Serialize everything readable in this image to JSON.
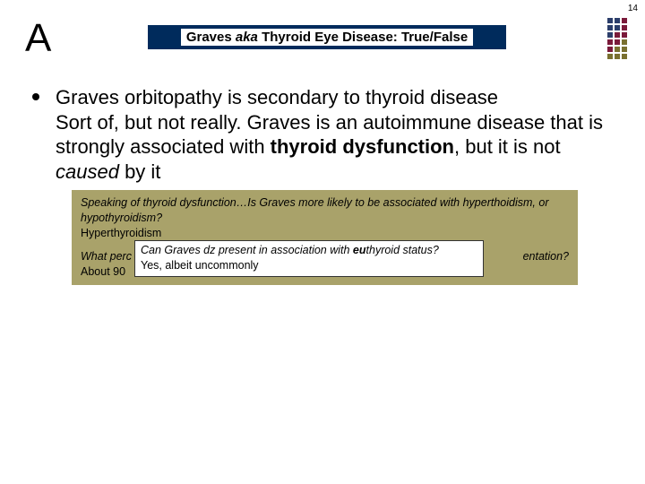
{
  "page_number": "14",
  "big_letter": "A",
  "title": {
    "pre": "Graves ",
    "aka": "aka",
    "post": " Thyroid Eye Disease: True/False"
  },
  "main": {
    "line1": "Graves orbitopathy is secondary to thyroid disease",
    "line2_pre": "Sort of, but not really. Graves is an autoimmune disease that is strongly associated with ",
    "line2_bold": "thyroid dysfunction",
    "line2_mid": ", but it is not ",
    "line2_ital": "caused",
    "line2_post": " by it"
  },
  "box1": {
    "q_pre": "Speaking of thyroid dysfunction…Is Graves more likely to be associated with hyp",
    "q_em1": "er",
    "q_mid": "thoidism, or hyp",
    "q_em2": "o",
    "q_post": "thyroidism?",
    "a": "Hyperthyroidism"
  },
  "box2": {
    "q_left": "What perc",
    "q_right": "entation?",
    "a": "About 90"
  },
  "overlay": {
    "q_pre": "Can Graves dz present in association with ",
    "q_bold": "eu",
    "q_post": "thyroid status?",
    "a": "Yes, albeit uncommonly"
  },
  "corner_colors": [
    "#2c3e6b",
    "#2c3e6b",
    "#7a1a3a",
    "#2c3e6b",
    "#2c3e6b",
    "#7a1a3a",
    "#2c3e6b",
    "#7a1a3a",
    "#7a1a3a",
    "#7a1a3a",
    "#7a1a3a",
    "#7a7030",
    "#7a1a3a",
    "#7a7030",
    "#7a7030",
    "#7a7030",
    "#7a7030",
    "#7a7030"
  ]
}
